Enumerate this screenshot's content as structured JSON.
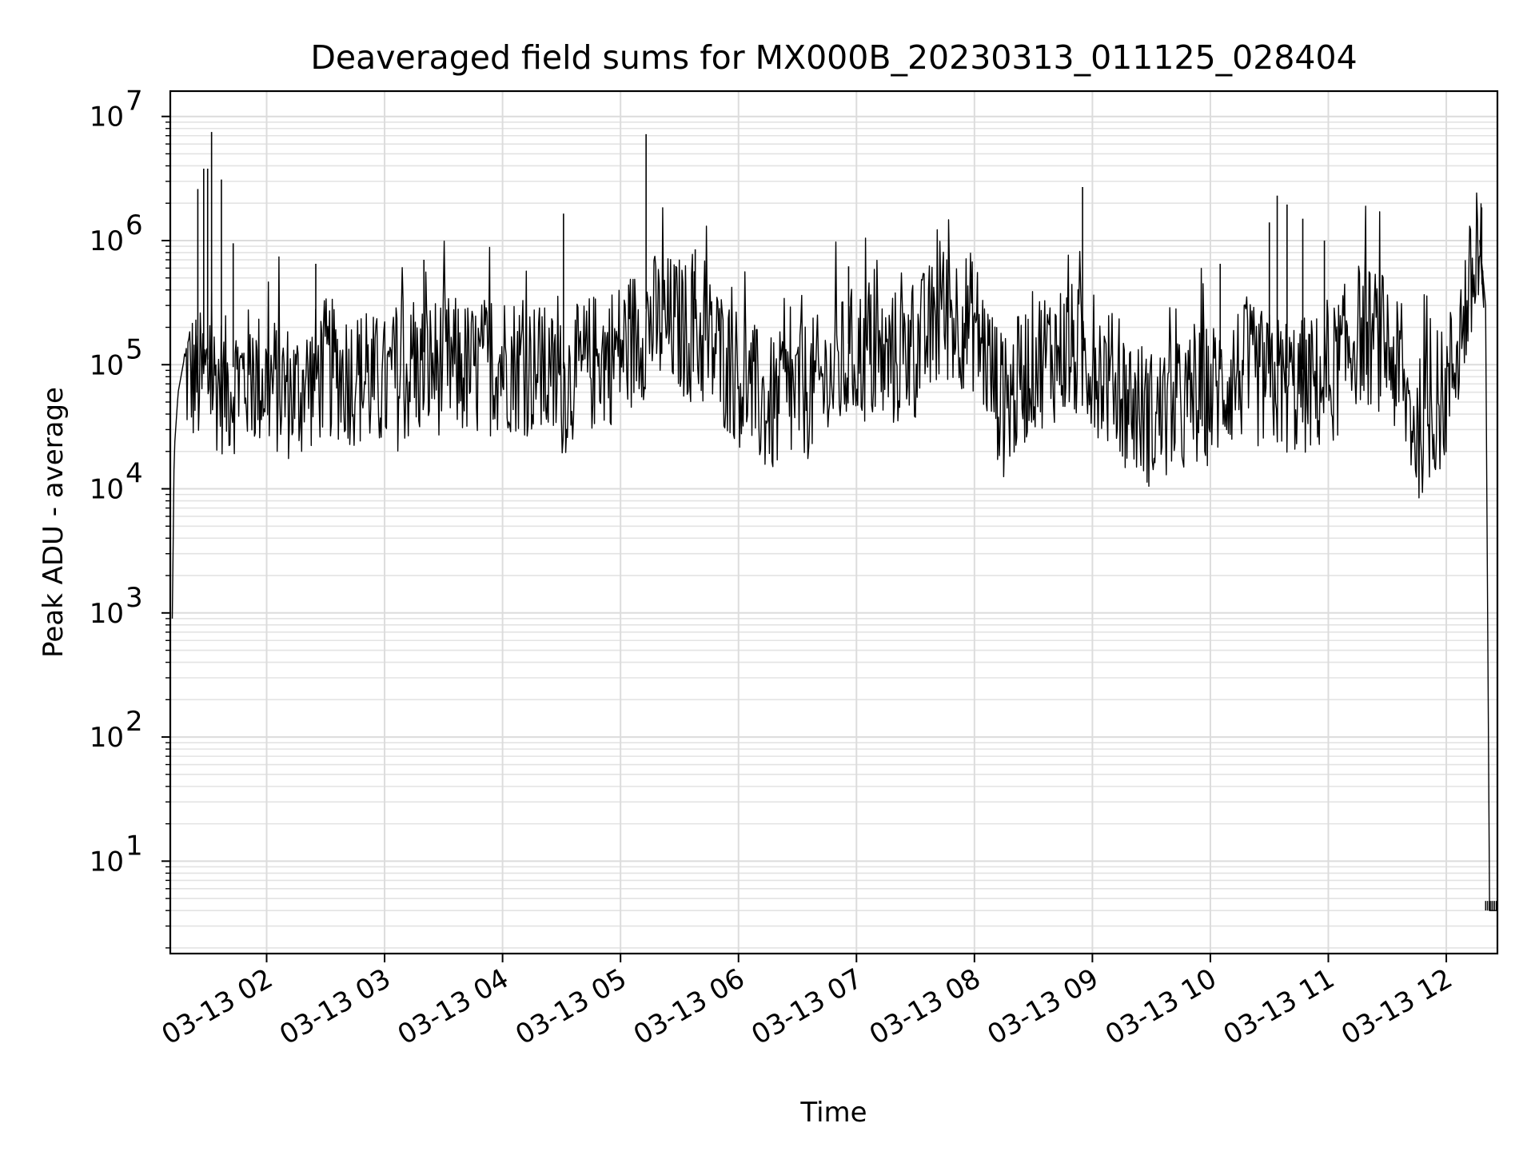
{
  "chart_data": {
    "type": "line",
    "title": "Deaveraged field sums for MX000B_20230313_011125_028404",
    "xlabel": "Time",
    "ylabel": "Peak ADU - average",
    "xlim": [
      "2023-03-13 01:11",
      "2023-03-13 12:26"
    ],
    "ylim": [
      1.8,
      16000000
    ],
    "yscale": "log",
    "grid": true,
    "x_ticks": [
      {
        "value": "2023-03-13 02:00",
        "label": "03-13 02"
      },
      {
        "value": "2023-03-13 03:00",
        "label": "03-13 03"
      },
      {
        "value": "2023-03-13 04:00",
        "label": "03-13 04"
      },
      {
        "value": "2023-03-13 05:00",
        "label": "03-13 05"
      },
      {
        "value": "2023-03-13 06:00",
        "label": "03-13 06"
      },
      {
        "value": "2023-03-13 07:00",
        "label": "03-13 07"
      },
      {
        "value": "2023-03-13 08:00",
        "label": "03-13 08"
      },
      {
        "value": "2023-03-13 09:00",
        "label": "03-13 09"
      },
      {
        "value": "2023-03-13 10:00",
        "label": "03-13 10"
      },
      {
        "value": "2023-03-13 11:00",
        "label": "03-13 11"
      },
      {
        "value": "2023-03-13 12:00",
        "label": "03-13 12"
      }
    ],
    "y_ticks": [
      {
        "value": 10,
        "base": "10",
        "exp": "1"
      },
      {
        "value": 100,
        "base": "10",
        "exp": "2"
      },
      {
        "value": 1000,
        "base": "10",
        "exp": "3"
      },
      {
        "value": 10000,
        "base": "10",
        "exp": "4"
      },
      {
        "value": 100000,
        "base": "10",
        "exp": "5"
      },
      {
        "value": 1000000,
        "base": "10",
        "exp": "6"
      },
      {
        "value": 10000000,
        "base": "10",
        "exp": "7"
      }
    ],
    "series": [
      {
        "color": "#000000",
        "x": [
          "2023-03-13 01:12",
          "2023-03-13 01:13",
          "2023-03-13 01:15",
          "2023-03-13 01:18",
          "2023-03-13 01:20",
          "2023-03-13 01:25",
          "2023-03-13 01:30",
          "2023-03-13 01:40",
          "2023-03-13 01:50",
          "2023-03-13 02:00",
          "2023-03-13 02:15",
          "2023-03-13 02:30",
          "2023-03-13 02:45",
          "2023-03-13 03:00",
          "2023-03-13 03:15",
          "2023-03-13 03:30",
          "2023-03-13 03:45",
          "2023-03-13 04:00",
          "2023-03-13 04:15",
          "2023-03-13 04:30",
          "2023-03-13 04:45",
          "2023-03-13 05:00",
          "2023-03-13 05:15",
          "2023-03-13 05:30",
          "2023-03-13 05:45",
          "2023-03-13 06:00",
          "2023-03-13 06:15",
          "2023-03-13 06:30",
          "2023-03-13 06:45",
          "2023-03-13 07:00",
          "2023-03-13 07:15",
          "2023-03-13 07:30",
          "2023-03-13 07:45",
          "2023-03-13 08:00",
          "2023-03-13 08:15",
          "2023-03-13 08:30",
          "2023-03-13 08:45",
          "2023-03-13 09:00",
          "2023-03-13 09:15",
          "2023-03-13 09:30",
          "2023-03-13 09:45",
          "2023-03-13 10:00",
          "2023-03-13 10:15",
          "2023-03-13 10:30",
          "2023-03-13 10:45",
          "2023-03-13 11:00",
          "2023-03-13 11:15",
          "2023-03-13 11:30",
          "2023-03-13 11:45",
          "2023-03-13 12:00",
          "2023-03-13 12:10",
          "2023-03-13 12:17",
          "2023-03-13 12:20",
          "2023-03-13 12:22",
          "2023-03-13 12:26"
        ],
        "y": [
          900,
          20000,
          60000,
          110000,
          120000,
          100000,
          110000,
          90000,
          110000,
          100000,
          80000,
          130000,
          110000,
          90000,
          120000,
          140000,
          120000,
          150000,
          130000,
          90000,
          140000,
          180000,
          300000,
          280000,
          200000,
          110000,
          60000,
          80000,
          100000,
          170000,
          140000,
          180000,
          350000,
          300000,
          60000,
          150000,
          180000,
          150000,
          80000,
          50000,
          60000,
          80000,
          120000,
          100000,
          90000,
          100000,
          250000,
          200000,
          40000,
          80000,
          400000,
          1000000,
          300000,
          4,
          4
        ]
      }
    ],
    "spikes": [
      {
        "x": "2023-03-13 01:25",
        "y": 2600000
      },
      {
        "x": "2023-03-13 01:28",
        "y": 3800000
      },
      {
        "x": "2023-03-13 01:30",
        "y": 3800000
      },
      {
        "x": "2023-03-13 01:32",
        "y": 7500000
      },
      {
        "x": "2023-03-13 01:37",
        "y": 3100000
      },
      {
        "x": "2023-03-13 01:43",
        "y": 950000
      },
      {
        "x": "2023-03-13 02:25",
        "y": 650000
      },
      {
        "x": "2023-03-13 03:20",
        "y": 700000
      },
      {
        "x": "2023-03-13 04:31",
        "y": 1650000
      },
      {
        "x": "2023-03-13 05:13",
        "y": 7200000
      },
      {
        "x": "2023-03-13 05:38",
        "y": 850000
      },
      {
        "x": "2023-03-13 06:56",
        "y": 620000
      },
      {
        "x": "2023-03-13 08:55",
        "y": 2700000
      },
      {
        "x": "2023-03-13 10:05",
        "y": 650000
      },
      {
        "x": "2023-03-13 10:30",
        "y": 1400000
      },
      {
        "x": "2023-03-13 10:34",
        "y": 2300000
      },
      {
        "x": "2023-03-13 10:39",
        "y": 1950000
      },
      {
        "x": "2023-03-13 10:47",
        "y": 1500000
      },
      {
        "x": "2023-03-13 10:58",
        "y": 1000000
      },
      {
        "x": "2023-03-13 12:18",
        "y": 1850000
      }
    ]
  }
}
